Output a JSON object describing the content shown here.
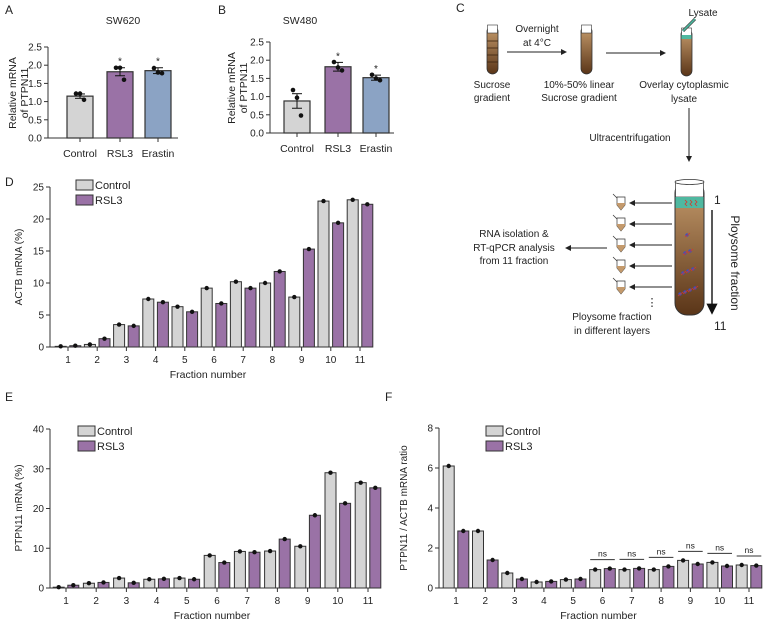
{
  "panels": [
    "A",
    "B",
    "C",
    "D",
    "E",
    "F"
  ],
  "chart_data": [
    {
      "id": "A",
      "type": "bar",
      "title": "SW620",
      "ylabel": [
        "Relative mRNA",
        "of PTPN11"
      ],
      "xlabel": "",
      "categories": [
        "Control",
        "RSL3",
        "Erastin"
      ],
      "values": [
        1.15,
        1.82,
        1.85
      ],
      "sem": [
        0.06,
        0.11,
        0.08
      ],
      "points": [
        [
          1.22,
          1.22,
          1.05
        ],
        [
          1.93,
          1.93,
          1.6
        ],
        [
          1.92,
          1.8,
          1.78
        ]
      ],
      "significance": [
        "",
        "*",
        "*"
      ],
      "ylim": [
        0,
        2.5
      ],
      "yticks": [
        "0.0",
        "0.5",
        "1.0",
        "1.5",
        "2.0",
        "2.5"
      ],
      "colors": [
        "#d4d4d4",
        "#9a72a6",
        "#8ba3c4"
      ]
    },
    {
      "id": "B",
      "type": "bar",
      "title": "SW480",
      "ylabel": [
        "Relative mRNA",
        "of PTPN11"
      ],
      "xlabel": "",
      "categories": [
        "Control",
        "RSL3",
        "Erastin"
      ],
      "values": [
        0.88,
        1.82,
        1.52
      ],
      "sem": [
        0.2,
        0.12,
        0.07
      ],
      "points": [
        [
          1.18,
          0.97,
          0.48
        ],
        [
          1.95,
          1.8,
          1.72
        ],
        [
          1.6,
          1.5,
          1.45
        ]
      ],
      "significance": [
        "",
        "*",
        "*"
      ],
      "ylim": [
        0,
        2.5
      ],
      "yticks": [
        "0.0",
        "0.5",
        "1.0",
        "1.5",
        "2.0",
        "2.5"
      ],
      "colors": [
        "#d4d4d4",
        "#9a72a6",
        "#8ba3c4"
      ]
    },
    {
      "id": "D",
      "type": "bar",
      "ylabel": "ACTB mRNA (%)",
      "xlabel": "Fraction number",
      "categories": [
        "1",
        "2",
        "3",
        "4",
        "5",
        "6",
        "7",
        "8",
        "9",
        "10",
        "11"
      ],
      "series": [
        {
          "name": "Control",
          "color": "#d4d4d4",
          "values": [
            0.1,
            0.4,
            3.5,
            7.5,
            6.3,
            9.2,
            10.2,
            10.0,
            7.8,
            22.8,
            23.0
          ]
        },
        {
          "name": "RSL3",
          "color": "#9a72a6",
          "values": [
            0.2,
            1.3,
            3.3,
            7.0,
            5.5,
            6.8,
            9.2,
            11.8,
            15.3,
            19.4,
            22.3
          ]
        }
      ],
      "ylim": [
        0,
        25
      ],
      "yticks": [
        "0",
        "5",
        "10",
        "15",
        "20",
        "25"
      ],
      "legend": "top-left"
    },
    {
      "id": "E",
      "type": "bar",
      "ylabel": "PTPN11  mRNA (%)",
      "xlabel": "Fraction number",
      "categories": [
        "1",
        "2",
        "3",
        "4",
        "5",
        "6",
        "7",
        "8",
        "9",
        "10",
        "11"
      ],
      "series": [
        {
          "name": "Control",
          "color": "#d4d4d4",
          "values": [
            0.2,
            1.2,
            2.5,
            2.2,
            2.5,
            8.2,
            9.2,
            9.3,
            10.5,
            29.0,
            26.5
          ]
        },
        {
          "name": "RSL3",
          "color": "#9a72a6",
          "values": [
            0.7,
            1.4,
            1.3,
            2.3,
            2.2,
            6.4,
            9.0,
            12.3,
            18.3,
            21.3,
            25.2
          ]
        }
      ],
      "ylim": [
        0,
        40
      ],
      "yticks": [
        "0",
        "10",
        "20",
        "30",
        "40"
      ],
      "legend": "top-left"
    },
    {
      "id": "F",
      "type": "bar",
      "ylabel": "PTPN11 / ACTB  mRNA ratio",
      "xlabel": "Fraction number",
      "categories": [
        "1",
        "2",
        "3",
        "4",
        "5",
        "6",
        "7",
        "8",
        "9",
        "10",
        "11"
      ],
      "series": [
        {
          "name": "Control",
          "color": "#d4d4d4",
          "values": [
            6.1,
            2.85,
            0.75,
            0.3,
            0.42,
            0.92,
            0.92,
            0.92,
            1.38,
            1.28,
            1.15
          ]
        },
        {
          "name": "RSL3",
          "color": "#9a72a6",
          "values": [
            2.85,
            1.4,
            0.45,
            0.33,
            0.45,
            0.97,
            0.98,
            1.08,
            1.2,
            1.1,
            1.12
          ]
        }
      ],
      "significance": [
        "",
        "",
        "",
        "",
        "",
        "ns",
        "ns",
        "ns",
        "ns",
        "ns",
        "ns"
      ],
      "ylim": [
        0,
        8
      ],
      "yticks": [
        "0",
        "2",
        "4",
        "6",
        "8"
      ],
      "legend": "top-left"
    }
  ],
  "diagram": {
    "step1": [
      "Sucrose",
      "gradient"
    ],
    "overnight": [
      "Overnight",
      "at 4°C"
    ],
    "step2": [
      "10%-50% linear",
      "Sucrose gradient"
    ],
    "lysate": "Lysate",
    "step3": [
      "Overlay cytoplasmic",
      "lysate"
    ],
    "ultracentrifugation": "Ultracentrifugation",
    "rna": [
      "RNA isolation &",
      "RT-qPCR analysis",
      "from 11 fraction"
    ],
    "layers": [
      "Ploysome fraction",
      "in different layers"
    ],
    "fraction_axis": "Ploysome fraction",
    "fraction_start": "1",
    "fraction_end": "11",
    "ellipsis": "⋮",
    "colors": {
      "sucrose_light": "#c49a6c",
      "sucrose_dark": "#5a3518",
      "lysate": "#4fb8a0",
      "rna": "#d9362b",
      "ribosome": "#3b4fc4"
    }
  }
}
